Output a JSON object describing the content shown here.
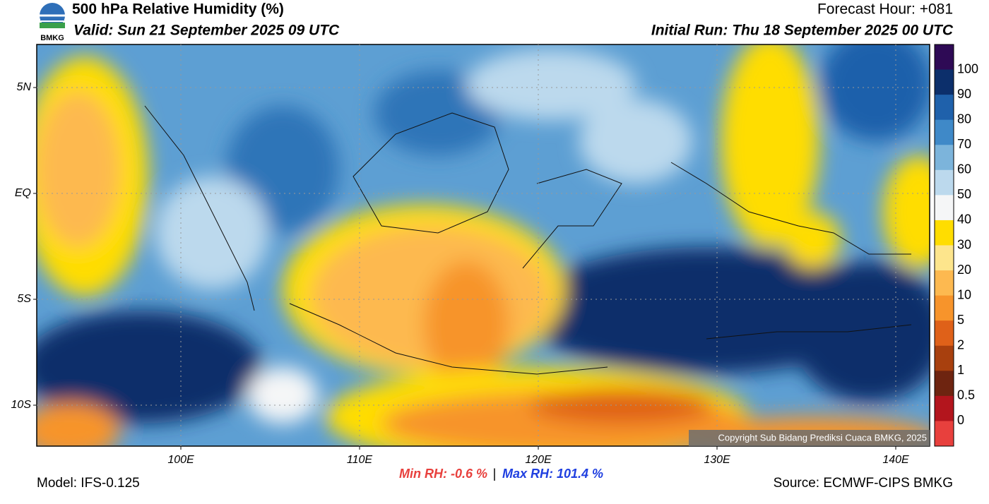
{
  "header": {
    "logo_text": "BMKG",
    "title": "500 hPa Relative Humidity (%)",
    "valid": "Valid: Sun 21 September 2025 09 UTC",
    "forecast_hour": "Forecast Hour: +081",
    "initial_run": "Initial Run: Thu 18 September 2025 00 UTC"
  },
  "map": {
    "lat_labels": [
      "5N",
      "EQ",
      "5S",
      "10S"
    ],
    "lon_labels": [
      "100E",
      "110E",
      "120E",
      "130E",
      "140E"
    ],
    "copyright": "Copyright Sub Bidang Prediksi Cuaca BMKG, 2025"
  },
  "colorbar": {
    "labels": [
      "100",
      "90",
      "80",
      "70",
      "60",
      "50",
      "40",
      "30",
      "20",
      "10",
      "5",
      "2",
      "1",
      "0.5",
      "0"
    ],
    "colors": [
      "#2e0a55",
      "#0c2f6b",
      "#1f61ab",
      "#3f89c8",
      "#7cb4db",
      "#bcd9ed",
      "#f5f6f7",
      "#ffdd00",
      "#fde58c",
      "#fdb950",
      "#f7942b",
      "#df6119",
      "#a8400e",
      "#6e2410",
      "#b3151d",
      "#e8403d"
    ]
  },
  "footer": {
    "model": "Model: IFS-0.125",
    "min_rh": "Min RH:  -0.6 %",
    "separator": "|",
    "max_rh": "Max RH: 101.4 %",
    "source": "Source: ECMWF-CIPS BMKG"
  }
}
